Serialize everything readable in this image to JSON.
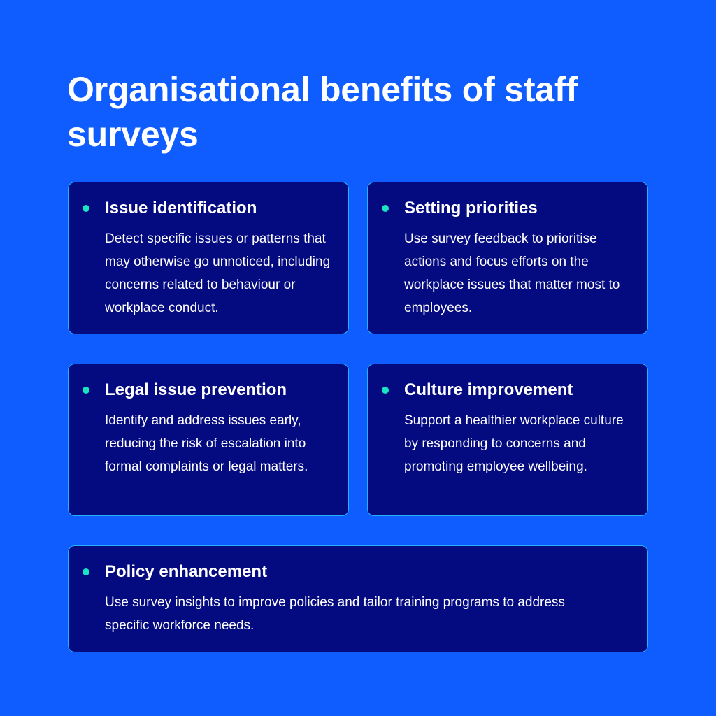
{
  "page": {
    "title": "Organisational benefits of staff surveys"
  },
  "colors": {
    "background": "#0f5cff",
    "card_background": "#040a7f",
    "card_border": "#25b3ff",
    "bullet": "#19e3c0",
    "text": "#ffffff"
  },
  "cards": [
    {
      "title": "Issue identification",
      "body": "Detect specific issues or patterns that may otherwise go unnoticed, including concerns related to behaviour or workplace conduct."
    },
    {
      "title": "Setting priorities",
      "body": "Use survey feedback to prioritise actions and focus efforts on the workplace issues that matter most to employees."
    },
    {
      "title": "Legal issue prevention",
      "body": "Identify and address issues early, reducing the risk of escalation into formal complaints or legal matters."
    },
    {
      "title": "Culture improvement",
      "body": "Support a healthier workplace culture by responding to concerns and promoting employee wellbeing."
    },
    {
      "title": "Policy enhancement",
      "body": "Use survey insights to improve policies and tailor training programs to address specific workforce needs."
    }
  ]
}
